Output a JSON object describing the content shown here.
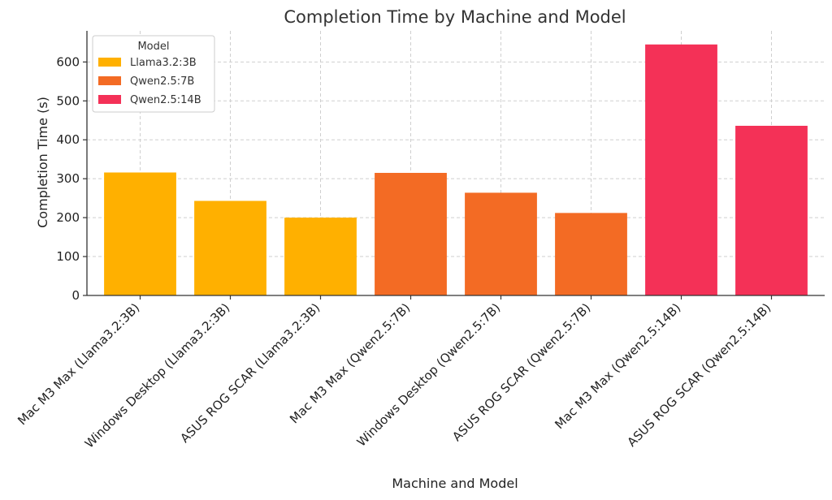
{
  "chart_data": {
    "type": "bar",
    "title": "Completion Time by Machine and Model",
    "xlabel": "Machine and Model",
    "ylabel": "Completion Time (s)",
    "ylim": [
      0,
      680
    ],
    "yticks": [
      0,
      100,
      200,
      300,
      400,
      500,
      600
    ],
    "grid": true,
    "legend": {
      "title": "Model",
      "placement": "top-left",
      "entries": [
        {
          "label": "Llama3.2:3B",
          "color": "#FFB000"
        },
        {
          "label": "Qwen2.5:7B",
          "color": "#F36B24"
        },
        {
          "label": "Qwen2.5:14B",
          "color": "#F43157"
        }
      ]
    },
    "categories": [
      "Mac M3 Max (Llama3.2:3B)",
      "Windows Desktop (Llama3.2:3B)",
      "ASUS ROG SCAR (Llama3.2:3B)",
      "Mac M3 Max (Qwen2.5:7B)",
      "Windows Desktop (Qwen2.5:7B)",
      "ASUS ROG SCAR (Qwen2.5:7B)",
      "Mac M3 Max (Qwen2.5:14B)",
      "ASUS ROG SCAR (Qwen2.5:14B)"
    ],
    "values": [
      316,
      243,
      200,
      315,
      264,
      212,
      645,
      436
    ],
    "series_index": [
      0,
      0,
      0,
      1,
      1,
      1,
      2,
      2
    ]
  }
}
